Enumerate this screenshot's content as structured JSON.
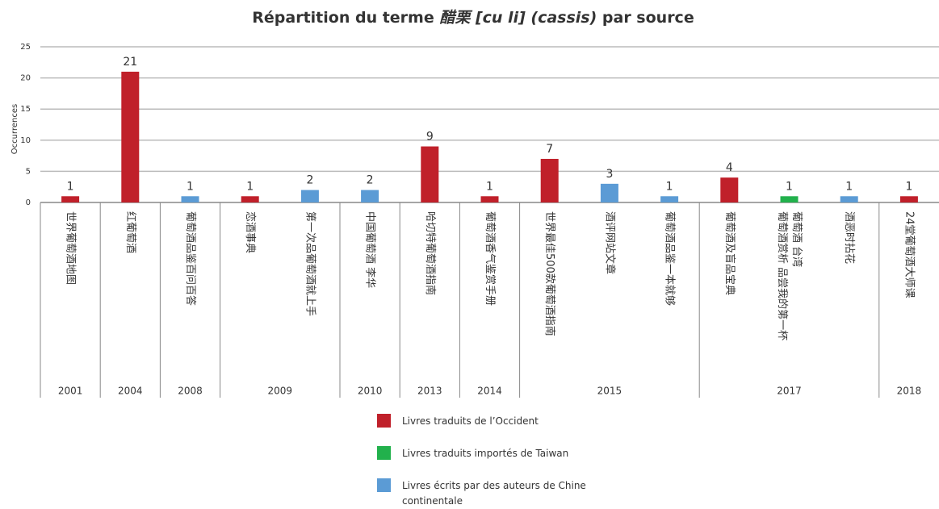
{
  "chart_data": {
    "type": "bar",
    "title": [
      "Répartition du terme ",
      "醋栗 [cu li] (cassis)",
      " par source"
    ],
    "y_label": "Occurrences",
    "categories": [
      "世界葡萄酒地图",
      "红葡萄酒",
      "葡萄酒品鉴百问百答",
      "恋酒事典",
      "第一次品葡萄酒就上手",
      "中国葡萄酒 李华",
      "哈切特葡萄酒指南",
      "葡萄酒香气鉴赏手册",
      "世界最佳500款葡萄酒指南",
      "酒评网站文章",
      "葡萄酒品鉴一本就够",
      "葡萄酒及盲品宝典",
      [
        "葡萄酒赏析  品尝我的第一杯",
        "葡萄酒 台湾"
      ],
      "酒恶时拈花",
      "24堂葡萄酒大师课"
    ],
    "series": [
      {
        "name": "Livres traduits de l’Occident",
        "color": "#c0202a",
        "values": [
          1,
          21,
          null,
          1,
          null,
          null,
          9,
          1,
          7,
          null,
          null,
          4,
          null,
          null,
          1
        ]
      },
      {
        "name": "Livres traduits importés de Taiwan",
        "color": "#22b14c",
        "values": [
          null,
          null,
          null,
          null,
          null,
          null,
          null,
          null,
          null,
          null,
          null,
          null,
          1,
          null,
          null
        ]
      },
      {
        "name": "Livres écrits par des auteurs de Chine continentale",
        "color": "#5b9bd5",
        "values": [
          null,
          null,
          1,
          null,
          2,
          2,
          null,
          null,
          null,
          3,
          1,
          null,
          null,
          1,
          null
        ]
      }
    ],
    "year_groups": [
      {
        "label": "2001",
        "span": 1
      },
      {
        "label": "2004",
        "span": 1
      },
      {
        "label": "2008",
        "span": 1
      },
      {
        "label": "2009",
        "span": 2
      },
      {
        "label": "2010",
        "span": 1
      },
      {
        "label": "2013",
        "span": 1
      },
      {
        "label": "2014",
        "span": 1
      },
      {
        "label": "2015",
        "span": 3
      },
      {
        "label": "2017",
        "span": 3
      },
      {
        "label": "2018",
        "span": 1
      }
    ],
    "ylim": [
      0,
      25
    ],
    "yticks": [
      0,
      5,
      10,
      15,
      20,
      25
    ],
    "grid": true
  }
}
